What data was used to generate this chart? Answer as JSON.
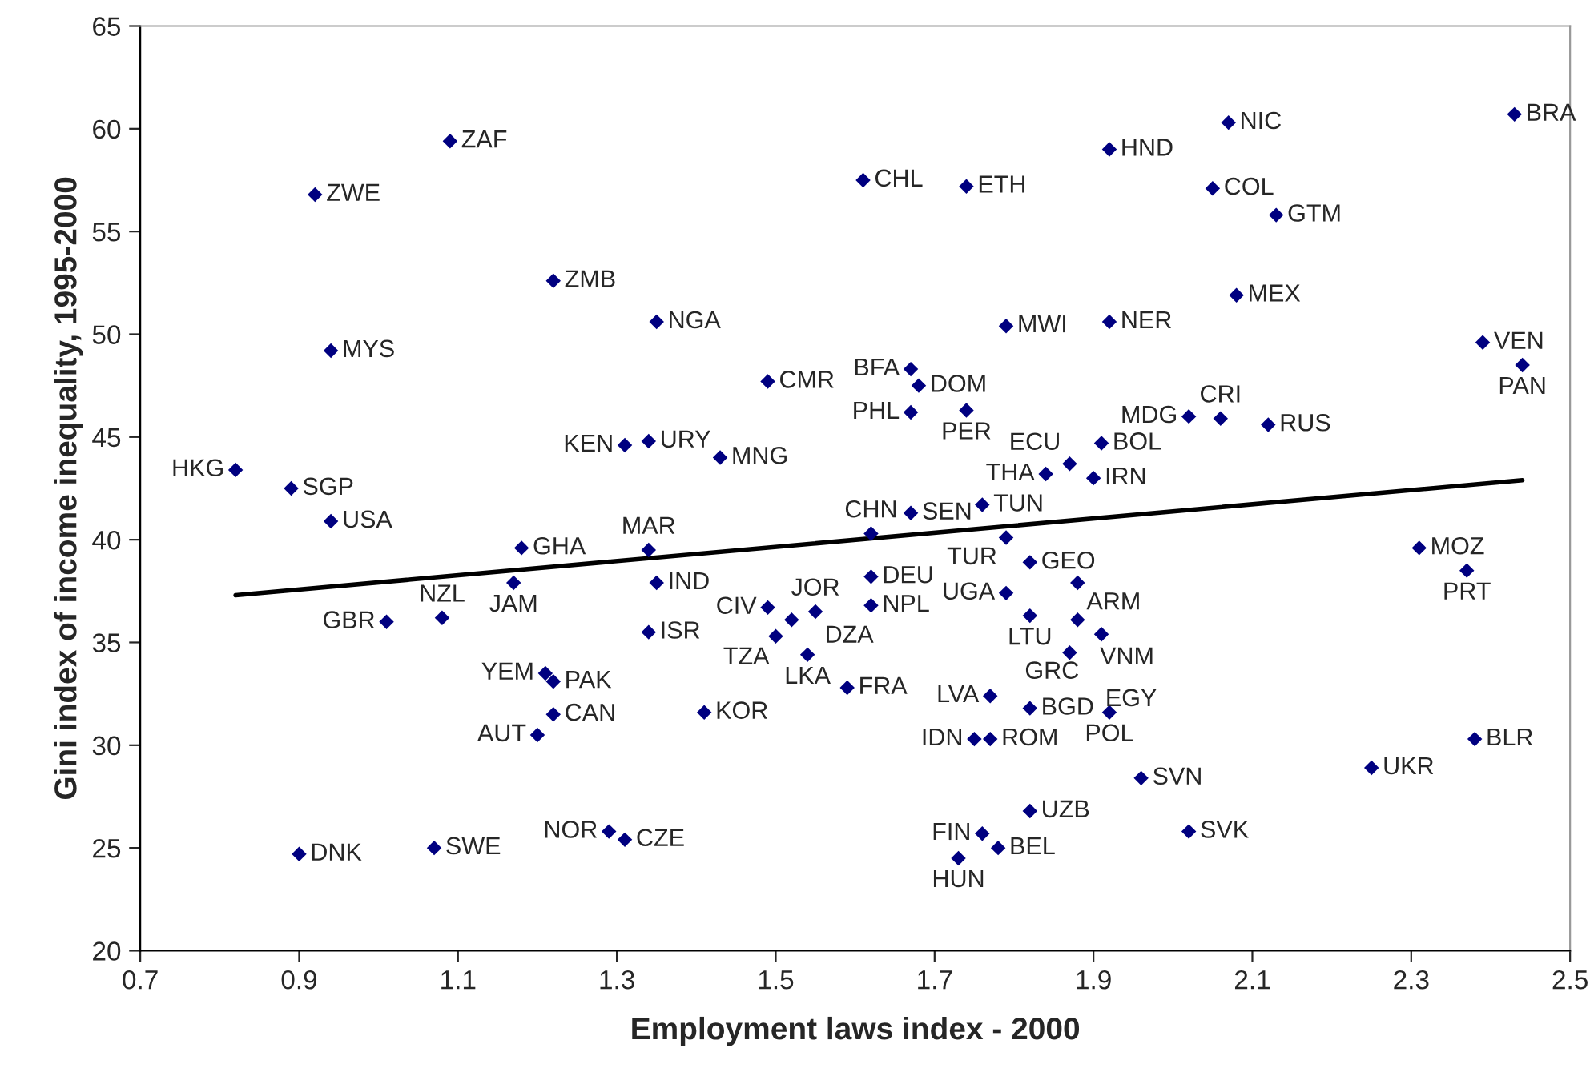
{
  "chart_data": {
    "type": "scatter",
    "xlabel": "Employment laws index - 2000",
    "ylabel": "Gini index of income inequality, 1995-2000",
    "xlim": [
      0.7,
      2.5
    ],
    "xticks": [
      0.7,
      0.9,
      1.1,
      1.3,
      1.5,
      1.7,
      1.9,
      2.1,
      2.3,
      2.5
    ],
    "ylim": [
      20,
      65
    ],
    "yticks": [
      20,
      25,
      30,
      35,
      40,
      45,
      50,
      55,
      60,
      65
    ],
    "grid": false,
    "legend": false,
    "series": [
      {
        "color": "#000080",
        "marker": "diamond",
        "x": [
          1.09,
          0.92,
          1.22,
          0.94,
          0.82,
          0.89,
          0.94,
          1.18,
          1.17,
          1.01,
          1.08,
          1.21,
          1.22,
          1.22,
          1.2,
          0.9,
          1.07,
          1.35,
          1.49,
          1.61,
          1.74,
          1.79,
          1.67,
          1.68,
          1.67,
          1.74,
          1.31,
          1.34,
          1.43,
          1.67,
          1.76,
          1.62,
          1.79,
          1.82,
          1.88,
          1.34,
          1.35,
          1.62,
          1.79,
          1.62,
          1.49,
          1.55,
          1.52,
          1.5,
          1.54,
          1.34,
          1.59,
          1.41,
          1.77,
          1.82,
          1.75,
          1.77,
          1.82,
          1.76,
          1.78,
          1.73,
          1.29,
          1.31,
          1.82,
          1.88,
          1.91,
          1.87,
          1.92,
          1.96,
          2.02,
          2.25,
          2.38,
          2.31,
          2.37,
          1.87,
          1.84,
          1.9,
          1.91,
          2.02,
          2.06,
          2.12,
          1.92,
          2.08,
          1.92,
          2.07,
          2.05,
          2.13,
          2.43,
          2.39,
          2.44
        ],
        "values": [
          59.4,
          56.8,
          52.6,
          49.2,
          43.4,
          42.5,
          40.9,
          39.6,
          37.9,
          36.0,
          36.2,
          33.5,
          33.1,
          31.5,
          30.5,
          24.7,
          25.0,
          50.6,
          47.7,
          57.5,
          57.2,
          50.4,
          48.3,
          47.5,
          46.2,
          46.3,
          44.6,
          44.8,
          44.0,
          41.3,
          41.7,
          40.3,
          40.1,
          38.9,
          37.9,
          39.5,
          37.9,
          38.2,
          37.4,
          36.8,
          36.7,
          36.5,
          36.1,
          35.3,
          34.4,
          35.5,
          32.8,
          31.6,
          32.4,
          31.8,
          30.3,
          30.3,
          26.8,
          25.7,
          25.0,
          24.5,
          25.8,
          25.4,
          36.3,
          36.1,
          35.4,
          34.5,
          31.6,
          28.4,
          25.8,
          28.9,
          30.3,
          39.6,
          38.5,
          43.7,
          43.2,
          43.0,
          44.7,
          46.0,
          45.9,
          45.6,
          50.6,
          51.9,
          59.0,
          60.3,
          57.1,
          55.8,
          60.7,
          49.6,
          48.5
        ]
      },
      {
        "type": "line",
        "color": "#000000",
        "line_style": "solid",
        "marker": "none",
        "x": [
          0.82,
          2.44
        ],
        "values": [
          37.3,
          42.9
        ]
      }
    ],
    "annotations": [
      {
        "text": "ZAF",
        "x": 1.09,
        "y": 59.4
      },
      {
        "text": "ZWE",
        "x": 0.92,
        "y": 56.8
      },
      {
        "text": "ZMB",
        "x": 1.22,
        "y": 52.6
      },
      {
        "text": "MYS",
        "x": 0.94,
        "y": 49.2
      },
      {
        "text": "HKG",
        "x": 0.82,
        "y": 43.4
      },
      {
        "text": "SGP",
        "x": 0.89,
        "y": 42.5
      },
      {
        "text": "USA",
        "x": 0.94,
        "y": 40.9
      },
      {
        "text": "GHA",
        "x": 1.18,
        "y": 39.6
      },
      {
        "text": "JAM",
        "x": 1.17,
        "y": 37.9
      },
      {
        "text": "GBR",
        "x": 1.01,
        "y": 36.0
      },
      {
        "text": "NZL",
        "x": 1.08,
        "y": 36.2
      },
      {
        "text": "YEM",
        "x": 1.21,
        "y": 33.5
      },
      {
        "text": "PAK",
        "x": 1.22,
        "y": 33.1
      },
      {
        "text": "CAN",
        "x": 1.22,
        "y": 31.5
      },
      {
        "text": "AUT",
        "x": 1.2,
        "y": 30.5
      },
      {
        "text": "DNK",
        "x": 0.9,
        "y": 24.7
      },
      {
        "text": "SWE",
        "x": 1.07,
        "y": 25.0
      },
      {
        "text": "NGA",
        "x": 1.35,
        "y": 50.6
      },
      {
        "text": "CMR",
        "x": 1.49,
        "y": 47.7
      },
      {
        "text": "CHL",
        "x": 1.61,
        "y": 57.5
      },
      {
        "text": "ETH",
        "x": 1.74,
        "y": 57.2
      },
      {
        "text": "MWI",
        "x": 1.79,
        "y": 50.4
      },
      {
        "text": "BFA",
        "x": 1.67,
        "y": 48.3
      },
      {
        "text": "DOM",
        "x": 1.68,
        "y": 47.5
      },
      {
        "text": "PHL",
        "x": 1.67,
        "y": 46.2
      },
      {
        "text": "PER",
        "x": 1.74,
        "y": 46.3
      },
      {
        "text": "KEN",
        "x": 1.31,
        "y": 44.6
      },
      {
        "text": "URY",
        "x": 1.34,
        "y": 44.8
      },
      {
        "text": "MNG",
        "x": 1.43,
        "y": 44.0
      },
      {
        "text": "SEN",
        "x": 1.67,
        "y": 41.3
      },
      {
        "text": "TUN",
        "x": 1.76,
        "y": 41.7
      },
      {
        "text": "CHN",
        "x": 1.62,
        "y": 40.3
      },
      {
        "text": "TUR",
        "x": 1.79,
        "y": 40.1
      },
      {
        "text": "GEO",
        "x": 1.82,
        "y": 38.9
      },
      {
        "text": "ARM",
        "x": 1.88,
        "y": 37.9
      },
      {
        "text": "MAR",
        "x": 1.34,
        "y": 39.5
      },
      {
        "text": "IND",
        "x": 1.35,
        "y": 37.9
      },
      {
        "text": "DEU",
        "x": 1.62,
        "y": 38.2
      },
      {
        "text": "UGA",
        "x": 1.79,
        "y": 37.4
      },
      {
        "text": "NPL",
        "x": 1.62,
        "y": 36.8
      },
      {
        "text": "CIV",
        "x": 1.49,
        "y": 36.7
      },
      {
        "text": "JOR",
        "x": 1.55,
        "y": 36.5
      },
      {
        "text": "TZA",
        "x": 1.52,
        "y": 36.1
      },
      {
        "text": "DZA",
        "x": 1.5,
        "y": 35.3
      },
      {
        "text": "LKA",
        "x": 1.54,
        "y": 34.4
      },
      {
        "text": "ISR",
        "x": 1.34,
        "y": 35.5
      },
      {
        "text": "FRA",
        "x": 1.59,
        "y": 32.8
      },
      {
        "text": "KOR",
        "x": 1.41,
        "y": 31.6
      },
      {
        "text": "LVA",
        "x": 1.77,
        "y": 32.4
      },
      {
        "text": "BGD",
        "x": 1.82,
        "y": 31.8
      },
      {
        "text": "IDN",
        "x": 1.75,
        "y": 30.3
      },
      {
        "text": "ROM",
        "x": 1.77,
        "y": 30.3
      },
      {
        "text": "UZB",
        "x": 1.82,
        "y": 26.8
      },
      {
        "text": "FIN",
        "x": 1.76,
        "y": 25.7
      },
      {
        "text": "BEL",
        "x": 1.78,
        "y": 25.0
      },
      {
        "text": "HUN",
        "x": 1.73,
        "y": 24.5
      },
      {
        "text": "NOR",
        "x": 1.29,
        "y": 25.8
      },
      {
        "text": "CZE",
        "x": 1.31,
        "y": 25.4
      },
      {
        "text": "LTU",
        "x": 1.82,
        "y": 36.3
      },
      {
        "text": "VNM",
        "x": 1.88,
        "y": 36.1
      },
      {
        "text": "GRC",
        "x": 1.91,
        "y": 35.4
      },
      {
        "text": "EGY",
        "x": 1.87,
        "y": 34.5
      },
      {
        "text": "POL",
        "x": 1.92,
        "y": 31.6
      },
      {
        "text": "SVN",
        "x": 1.96,
        "y": 28.4
      },
      {
        "text": "SVK",
        "x": 2.02,
        "y": 25.8
      },
      {
        "text": "UKR",
        "x": 2.25,
        "y": 28.9
      },
      {
        "text": "BLR",
        "x": 2.38,
        "y": 30.3
      },
      {
        "text": "MOZ",
        "x": 2.31,
        "y": 39.6
      },
      {
        "text": "PRT",
        "x": 2.37,
        "y": 38.5
      },
      {
        "text": "ECU",
        "x": 1.87,
        "y": 43.7
      },
      {
        "text": "THA",
        "x": 1.84,
        "y": 43.2
      },
      {
        "text": "IRN",
        "x": 1.9,
        "y": 43.0
      },
      {
        "text": "BOL",
        "x": 1.91,
        "y": 44.7
      },
      {
        "text": "MDG",
        "x": 2.02,
        "y": 46.0
      },
      {
        "text": "CRI",
        "x": 2.06,
        "y": 45.9
      },
      {
        "text": "RUS",
        "x": 2.12,
        "y": 45.6
      },
      {
        "text": "NER",
        "x": 1.92,
        "y": 50.6
      },
      {
        "text": "MEX",
        "x": 2.08,
        "y": 51.9
      },
      {
        "text": "HND",
        "x": 1.92,
        "y": 59.0
      },
      {
        "text": "NIC",
        "x": 2.07,
        "y": 60.3
      },
      {
        "text": "COL",
        "x": 2.05,
        "y": 57.1
      },
      {
        "text": "GTM",
        "x": 2.13,
        "y": 55.8
      },
      {
        "text": "BRA",
        "x": 2.43,
        "y": 60.7
      },
      {
        "text": "VEN",
        "x": 2.39,
        "y": 49.6
      },
      {
        "text": "PAN",
        "x": 2.44,
        "y": 48.5
      }
    ]
  }
}
